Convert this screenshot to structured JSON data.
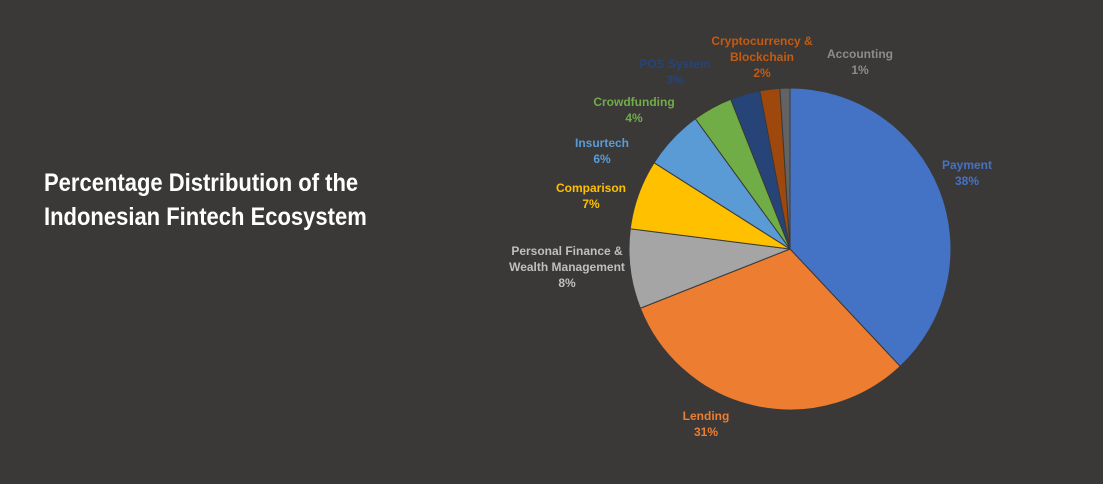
{
  "chart_data": {
    "type": "pie",
    "title": "Percentage Distribution of the Indonesian Fintech Ecosystem",
    "categories": [
      "Payment",
      "Lending",
      "Personal Finance & Wealth Management",
      "Comparison",
      "Insurtech",
      "Crowdfunding",
      "POS System",
      "Cryptocurrency & Blockchain",
      "Accounting"
    ],
    "values": [
      38,
      31,
      8,
      7,
      6,
      4,
      3,
      2,
      1
    ],
    "value_labels": [
      "38%",
      "31%",
      "8%",
      "7%",
      "6%",
      "4%",
      "3%",
      "2%",
      "1%"
    ],
    "colors": [
      "#4472c4",
      "#ed7d31",
      "#a5a5a5",
      "#ffc000",
      "#5b9bd5",
      "#70ad47",
      "#264478",
      "#9e480e",
      "#636363"
    ]
  }
}
